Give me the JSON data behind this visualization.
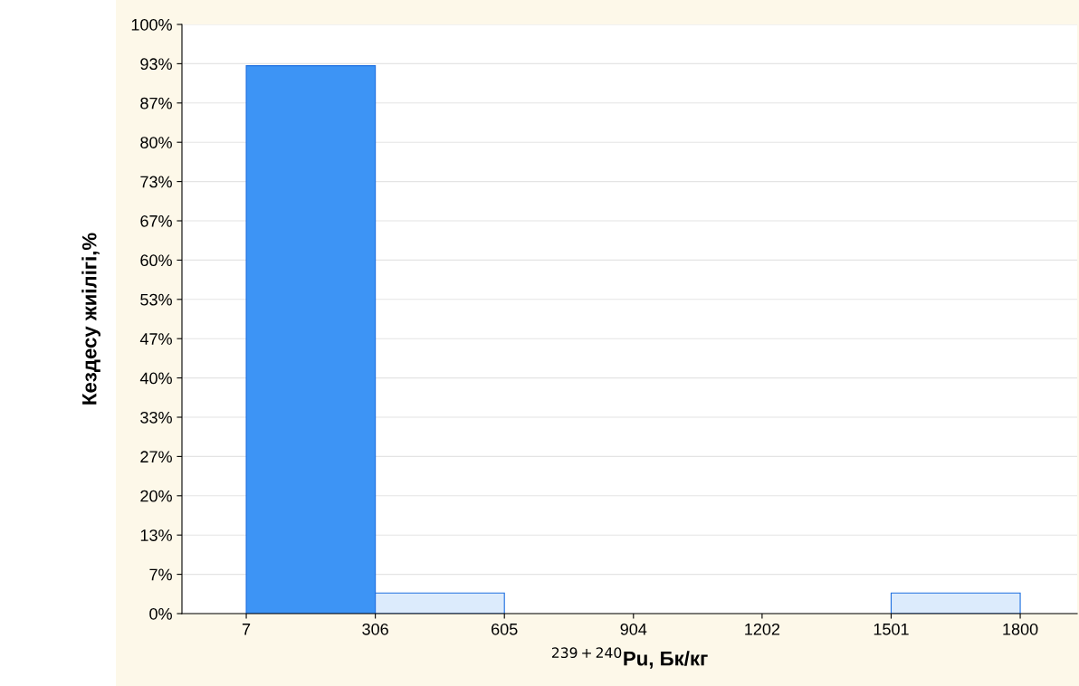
{
  "chart_data": {
    "type": "histogram",
    "xlabel": "$^{239+240}$Pu, Бк/кг",
    "ylabel": "Кездесу жиілігі,%",
    "bins": [
      7,
      306,
      605,
      904,
      1202,
      1501,
      1800
    ],
    "values": [
      93,
      3.5,
      0,
      0,
      0,
      3.5
    ],
    "colors": [
      "#3d94f5",
      "#dcebfc",
      "#dcebfc",
      "#dcebfc",
      "#dcebfc",
      "#dcebfc"
    ],
    "xlim": [
      -142,
      1932
    ],
    "xticks": [
      7,
      306,
      605,
      904,
      1202,
      1501,
      1800
    ],
    "ylim": [
      0,
      100
    ],
    "yticks": [
      {
        "value": 0,
        "label": "0%"
      },
      {
        "value": 6.667,
        "label": "7%"
      },
      {
        "value": 13.333,
        "label": "13%"
      },
      {
        "value": 20,
        "label": "20%"
      },
      {
        "value": 26.667,
        "label": "27%"
      },
      {
        "value": 33.333,
        "label": "33%"
      },
      {
        "value": 40,
        "label": "40%"
      },
      {
        "value": 46.667,
        "label": "47%"
      },
      {
        "value": 53.333,
        "label": "53%"
      },
      {
        "value": 60,
        "label": "60%"
      },
      {
        "value": 66.667,
        "label": "67%"
      },
      {
        "value": 73.333,
        "label": "73%"
      },
      {
        "value": 80,
        "label": "80%"
      },
      {
        "value": 86.667,
        "label": "87%"
      },
      {
        "value": 93.333,
        "label": "93%"
      },
      {
        "value": 100,
        "label": "100%"
      }
    ],
    "grid": "y"
  }
}
